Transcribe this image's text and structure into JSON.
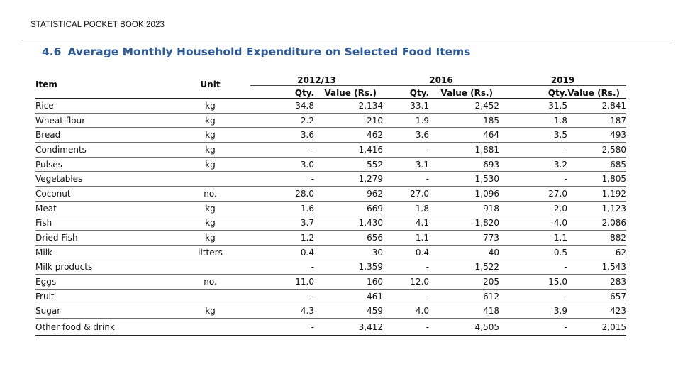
{
  "running_header": "STATISTICAL POCKET BOOK 2023",
  "section": {
    "number": "4.6",
    "title": "Average Monthly Household Expenditure on Selected Food Items"
  },
  "table": {
    "col_item": "Item",
    "col_unit": "Unit",
    "years": [
      "2012/13",
      "2016",
      "2019"
    ],
    "qty_label": "Qty.",
    "value_label": "Value (Rs.)",
    "rows": [
      {
        "item": "Rice",
        "unit": "kg",
        "q1": "34.8",
        "v1": "2,134",
        "q2": "33.1",
        "v2": "2,452",
        "q3": "31.5",
        "v3": "2,841"
      },
      {
        "item": "Wheat flour",
        "unit": "kg",
        "q1": "2.2",
        "v1": "210",
        "q2": "1.9",
        "v2": "185",
        "q3": "1.8",
        "v3": "187"
      },
      {
        "item": "Bread",
        "unit": "kg",
        "q1": "3.6",
        "v1": "462",
        "q2": "3.6",
        "v2": "464",
        "q3": "3.5",
        "v3": "493"
      },
      {
        "item": "Condiments",
        "unit": "kg",
        "q1": "-",
        "v1": "1,416",
        "q2": "-",
        "v2": "1,881",
        "q3": "-",
        "v3": "2,580"
      },
      {
        "item": "Pulses",
        "unit": "kg",
        "q1": "3.0",
        "v1": "552",
        "q2": "3.1",
        "v2": "693",
        "q3": "3.2",
        "v3": "685"
      },
      {
        "item": "Vegetables",
        "unit": "",
        "q1": "-",
        "v1": "1,279",
        "q2": "-",
        "v2": "1,530",
        "q3": "-",
        "v3": "1,805"
      },
      {
        "item": "Coconut",
        "unit": "no.",
        "q1": "28.0",
        "v1": "962",
        "q2": "27.0",
        "v2": "1,096",
        "q3": "27.0",
        "v3": "1,192"
      },
      {
        "item": "Meat",
        "unit": "kg",
        "q1": "1.6",
        "v1": "669",
        "q2": "1.8",
        "v2": "918",
        "q3": "2.0",
        "v3": "1,123"
      },
      {
        "item": "Fish",
        "unit": "kg",
        "q1": "3.7",
        "v1": "1,430",
        "q2": "4.1",
        "v2": "1,820",
        "q3": "4.0",
        "v3": "2,086"
      },
      {
        "item": "Dried Fish",
        "unit": "kg",
        "q1": "1.2",
        "v1": "656",
        "q2": "1.1",
        "v2": "773",
        "q3": "1.1",
        "v3": "882"
      },
      {
        "item": "Milk",
        "unit": "litters",
        "q1": "0.4",
        "v1": "30",
        "q2": "0.4",
        "v2": "40",
        "q3": "0.5",
        "v3": "62"
      },
      {
        "item": "Milk products",
        "unit": "",
        "q1": "-",
        "v1": "1,359",
        "q2": "-",
        "v2": "1,522",
        "q3": "-",
        "v3": "1,543"
      },
      {
        "item": "Eggs",
        "unit": "no.",
        "q1": "11.0",
        "v1": "160",
        "q2": "12.0",
        "v2": "205",
        "q3": "15.0",
        "v3": "283"
      },
      {
        "item": "Fruit",
        "unit": "",
        "q1": "-",
        "v1": "461",
        "q2": "-",
        "v2": "612",
        "q3": "-",
        "v3": "657"
      },
      {
        "item": "Sugar",
        "unit": "kg",
        "q1": "4.3",
        "v1": "459",
        "q2": "4.0",
        "v2": "418",
        "q3": "3.9",
        "v3": "423"
      },
      {
        "item": "Other food & drink",
        "unit": "",
        "q1": "-",
        "v1": "3,412",
        "q2": "-",
        "v2": "4,505",
        "q3": "-",
        "v3": "2,015"
      }
    ]
  }
}
